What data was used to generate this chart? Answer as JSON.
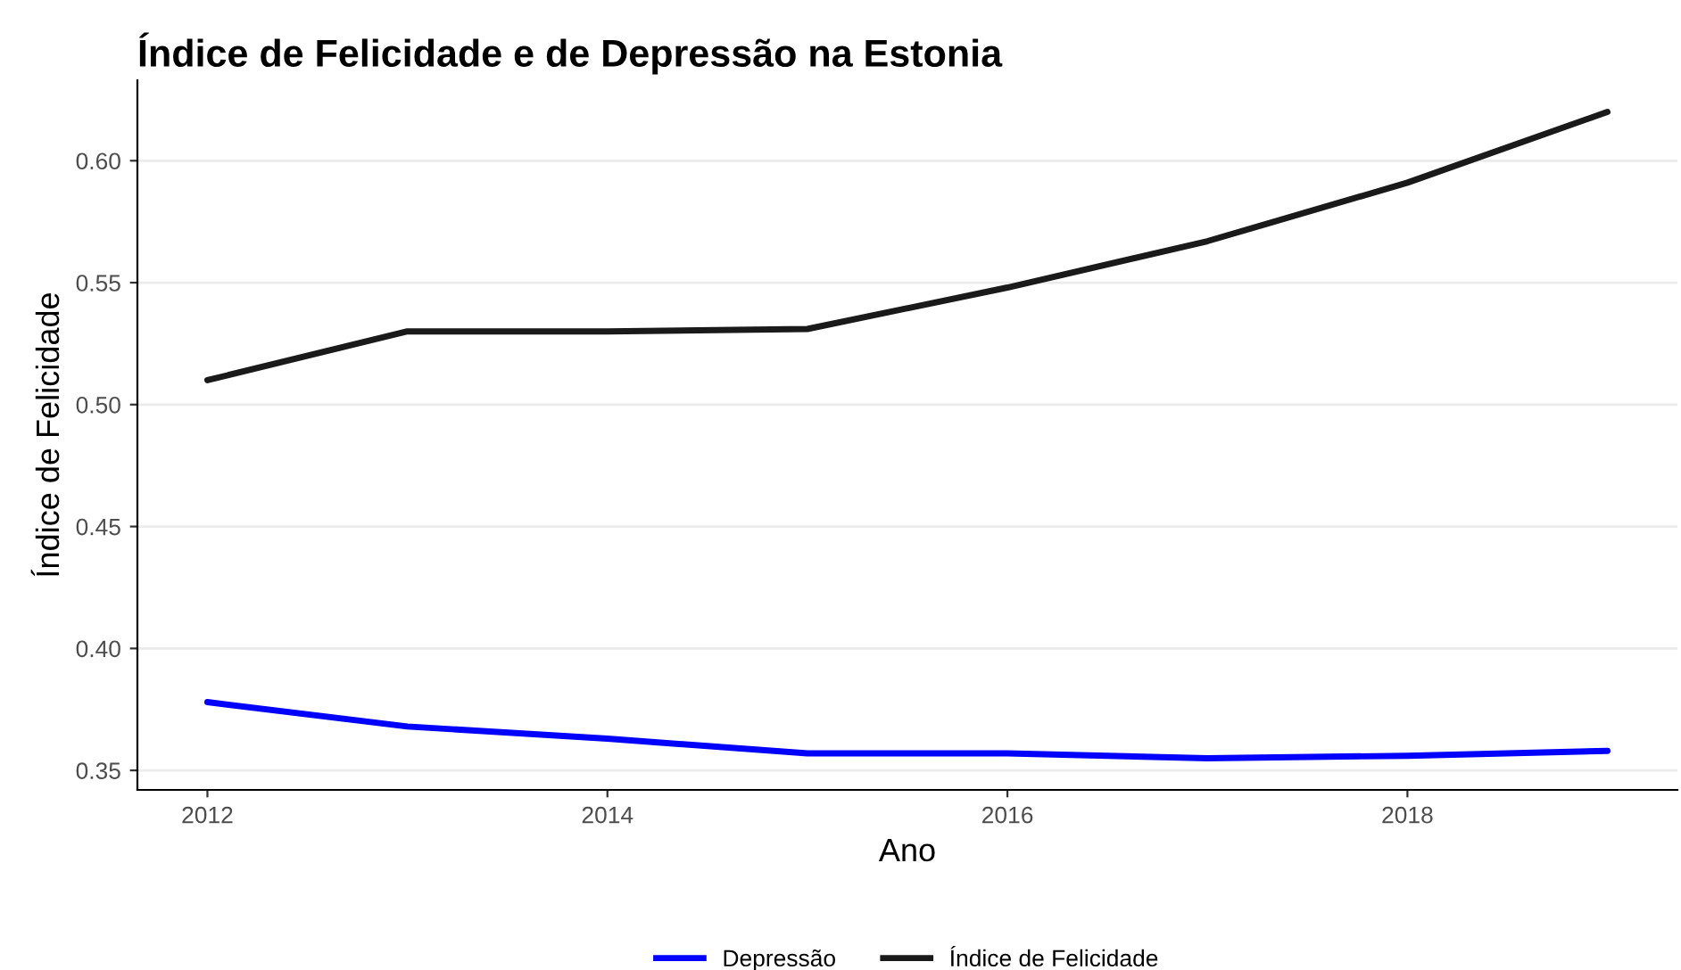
{
  "chart_data": {
    "type": "line",
    "title": "Índice de Felicidade e de Depressão na Estonia",
    "xlabel": "Ano",
    "ylabel": "Índice de Felicidade",
    "x": [
      2012,
      2013,
      2014,
      2015,
      2016,
      2017,
      2018,
      2019
    ],
    "series": [
      {
        "name": "Depressão",
        "color": "#0000ff",
        "values": [
          0.378,
          0.368,
          0.363,
          0.357,
          0.357,
          0.355,
          0.356,
          0.358
        ]
      },
      {
        "name": "Índice de Felicidade",
        "color": "#1a1a1a",
        "values": [
          0.51,
          0.53,
          0.53,
          0.531,
          0.548,
          0.567,
          0.591,
          0.62
        ]
      }
    ],
    "xlim": [
      2011.65,
      2019.35
    ],
    "ylim": [
      0.342,
      0.633
    ],
    "xticks": [
      2012,
      2014,
      2016,
      2018
    ],
    "yticks": [
      {
        "value": 0.35,
        "label": "0.35"
      },
      {
        "value": 0.4,
        "label": "0.40"
      },
      {
        "value": 0.45,
        "label": "0.45"
      },
      {
        "value": 0.5,
        "label": "0.50"
      },
      {
        "value": 0.55,
        "label": "0.55"
      },
      {
        "value": 0.6,
        "label": "0.60"
      }
    ],
    "grid": "y",
    "legend": "bottom",
    "marker": "none",
    "line_style": "solid"
  }
}
